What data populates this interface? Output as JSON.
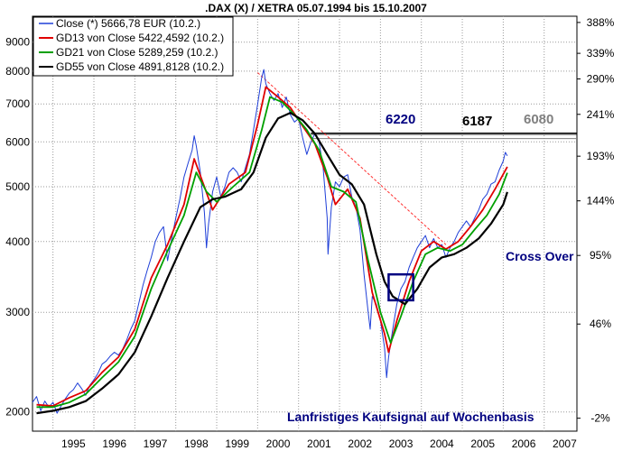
{
  "chart_data": {
    "type": "line",
    "title": ".DAX (X) / XETRA 05.07.1994 bis 15.10.2007",
    "y_scale": "log",
    "ylim": [
      1850,
      10000
    ],
    "xlim": [
      1994.5,
      2007.8
    ],
    "x_tick_labels": [
      "1995",
      "1996",
      "1997",
      "1998",
      "1999",
      "2000",
      "2001",
      "2002",
      "2003",
      "2004",
      "2005",
      "2006",
      "2007"
    ],
    "y_left_ticks": [
      2000,
      3000,
      4000,
      5000,
      6000,
      7000,
      8000,
      9000
    ],
    "y_left_tick_labels": [
      "2000",
      "3000",
      "4000",
      "5000",
      "6000",
      "7000",
      "8000",
      "9000"
    ],
    "y_right_ticks": [
      1950,
      2860,
      3780,
      4720,
      5660,
      6710,
      7750,
      8600,
      9750
    ],
    "y_right_tick_labels": [
      "-2%",
      "46%",
      "95%",
      "144%",
      "193%",
      "241%",
      "290%",
      "339%",
      "388%"
    ],
    "grid": true,
    "legend_position": "top-left",
    "colors": {
      "close": "#1f3fd8",
      "gd13": "#e00000",
      "gd21": "#00a000",
      "gd55": "#000000",
      "trend": "#ff3030",
      "cross_box": "#000080",
      "annotation_blue": "#000080",
      "annotation_grey": "#808080"
    },
    "series": [
      {
        "name": "Close (*) 5666,78 EUR (10.2.)",
        "color": "#1f3fd8",
        "points": [
          [
            1994.5,
            2080
          ],
          [
            1994.6,
            2130
          ],
          [
            1994.7,
            2010
          ],
          [
            1994.8,
            2090
          ],
          [
            1994.9,
            2040
          ],
          [
            1995.0,
            2080
          ],
          [
            1995.1,
            1990
          ],
          [
            1995.2,
            2050
          ],
          [
            1995.3,
            2110
          ],
          [
            1995.4,
            2160
          ],
          [
            1995.5,
            2190
          ],
          [
            1995.6,
            2250
          ],
          [
            1995.7,
            2200
          ],
          [
            1995.8,
            2140
          ],
          [
            1995.9,
            2230
          ],
          [
            1996.0,
            2280
          ],
          [
            1996.1,
            2340
          ],
          [
            1996.2,
            2430
          ],
          [
            1996.3,
            2460
          ],
          [
            1996.4,
            2510
          ],
          [
            1996.5,
            2550
          ],
          [
            1996.6,
            2520
          ],
          [
            1996.7,
            2580
          ],
          [
            1996.8,
            2680
          ],
          [
            1996.9,
            2800
          ],
          [
            1997.0,
            2900
          ],
          [
            1997.1,
            3120
          ],
          [
            1997.2,
            3350
          ],
          [
            1997.3,
            3550
          ],
          [
            1997.4,
            3750
          ],
          [
            1997.5,
            4000
          ],
          [
            1997.6,
            4150
          ],
          [
            1997.7,
            4250
          ],
          [
            1997.8,
            3700
          ],
          [
            1997.9,
            4050
          ],
          [
            1998.0,
            4400
          ],
          [
            1998.1,
            4750
          ],
          [
            1998.2,
            5200
          ],
          [
            1998.3,
            5500
          ],
          [
            1998.4,
            5800
          ],
          [
            1998.45,
            6150
          ],
          [
            1998.5,
            5900
          ],
          [
            1998.6,
            5300
          ],
          [
            1998.7,
            4500
          ],
          [
            1998.75,
            3900
          ],
          [
            1998.8,
            4300
          ],
          [
            1998.9,
            4900
          ],
          [
            1999.0,
            5200
          ],
          [
            1999.1,
            4800
          ],
          [
            1999.2,
            5000
          ],
          [
            1999.3,
            5300
          ],
          [
            1999.4,
            5400
          ],
          [
            1999.5,
            5300
          ],
          [
            1999.6,
            5100
          ],
          [
            1999.7,
            5400
          ],
          [
            1999.8,
            5700
          ],
          [
            1999.9,
            6300
          ],
          [
            2000.0,
            7000
          ],
          [
            2000.1,
            7800
          ],
          [
            2000.15,
            8050
          ],
          [
            2000.2,
            7600
          ],
          [
            2000.3,
            7300
          ],
          [
            2000.4,
            7100
          ],
          [
            2000.5,
            7300
          ],
          [
            2000.6,
            6900
          ],
          [
            2000.7,
            7200
          ],
          [
            2000.8,
            6700
          ],
          [
            2000.9,
            6500
          ],
          [
            2001.0,
            6600
          ],
          [
            2001.1,
            6100
          ],
          [
            2001.2,
            5700
          ],
          [
            2001.3,
            6000
          ],
          [
            2001.4,
            6200
          ],
          [
            2001.5,
            6000
          ],
          [
            2001.6,
            5400
          ],
          [
            2001.7,
            4400
          ],
          [
            2001.72,
            3800
          ],
          [
            2001.8,
            4600
          ],
          [
            2001.9,
            5100
          ],
          [
            2002.0,
            5000
          ],
          [
            2002.1,
            5200
          ],
          [
            2002.2,
            5250
          ],
          [
            2002.3,
            4800
          ],
          [
            2002.4,
            4600
          ],
          [
            2002.5,
            4200
          ],
          [
            2002.6,
            3500
          ],
          [
            2002.7,
            3000
          ],
          [
            2002.75,
            2800
          ],
          [
            2002.8,
            3200
          ],
          [
            2002.9,
            3100
          ],
          [
            2003.0,
            2900
          ],
          [
            2003.1,
            2600
          ],
          [
            2003.15,
            2300
          ],
          [
            2003.2,
            2500
          ],
          [
            2003.3,
            2800
          ],
          [
            2003.4,
            3100
          ],
          [
            2003.5,
            3300
          ],
          [
            2003.6,
            3400
          ],
          [
            2003.7,
            3600
          ],
          [
            2003.8,
            3750
          ],
          [
            2003.9,
            3900
          ],
          [
            2004.0,
            4000
          ],
          [
            2004.1,
            4100
          ],
          [
            2004.2,
            3900
          ],
          [
            2004.3,
            4050
          ],
          [
            2004.4,
            3900
          ],
          [
            2004.5,
            3950
          ],
          [
            2004.6,
            3750
          ],
          [
            2004.7,
            3900
          ],
          [
            2004.8,
            4000
          ],
          [
            2004.9,
            4150
          ],
          [
            2005.0,
            4250
          ],
          [
            2005.1,
            4350
          ],
          [
            2005.2,
            4250
          ],
          [
            2005.3,
            4400
          ],
          [
            2005.4,
            4550
          ],
          [
            2005.5,
            4750
          ],
          [
            2005.6,
            4850
          ],
          [
            2005.7,
            5050
          ],
          [
            2005.8,
            5100
          ],
          [
            2005.9,
            5350
          ],
          [
            2006.0,
            5550
          ],
          [
            2006.05,
            5750
          ],
          [
            2006.1,
            5667
          ]
        ]
      },
      {
        "name": "GD13 von Close 5422,4592 (10.2.)",
        "color": "#e00000",
        "points": [
          [
            1994.6,
            2060
          ],
          [
            1995.0,
            2050
          ],
          [
            1995.4,
            2120
          ],
          [
            1995.8,
            2180
          ],
          [
            1996.2,
            2350
          ],
          [
            1996.6,
            2500
          ],
          [
            1997.0,
            2800
          ],
          [
            1997.4,
            3450
          ],
          [
            1997.8,
            3950
          ],
          [
            1998.2,
            4650
          ],
          [
            1998.45,
            5600
          ],
          [
            1998.7,
            5000
          ],
          [
            1998.9,
            4550
          ],
          [
            1999.3,
            5050
          ],
          [
            1999.7,
            5300
          ],
          [
            2000.0,
            6450
          ],
          [
            2000.2,
            7500
          ],
          [
            2000.5,
            7200
          ],
          [
            2000.8,
            6900
          ],
          [
            2001.1,
            6400
          ],
          [
            2001.4,
            5950
          ],
          [
            2001.7,
            5200
          ],
          [
            2001.9,
            4650
          ],
          [
            2002.2,
            4950
          ],
          [
            2002.5,
            4400
          ],
          [
            2002.8,
            3250
          ],
          [
            2003.1,
            2750
          ],
          [
            2003.2,
            2550
          ],
          [
            2003.4,
            2900
          ],
          [
            2003.7,
            3400
          ],
          [
            2004.0,
            3850
          ],
          [
            2004.3,
            4000
          ],
          [
            2004.6,
            3880
          ],
          [
            2004.9,
            4000
          ],
          [
            2005.2,
            4250
          ],
          [
            2005.5,
            4550
          ],
          [
            2005.8,
            4950
          ],
          [
            2006.1,
            5422
          ]
        ]
      },
      {
        "name": "GD21 von Close 5289,259 (10.2.)",
        "color": "#00a000",
        "points": [
          [
            1994.6,
            2040
          ],
          [
            1995.0,
            2040
          ],
          [
            1995.4,
            2080
          ],
          [
            1995.8,
            2150
          ],
          [
            1996.2,
            2300
          ],
          [
            1996.6,
            2450
          ],
          [
            1997.0,
            2720
          ],
          [
            1997.4,
            3300
          ],
          [
            1997.8,
            3850
          ],
          [
            1998.2,
            4450
          ],
          [
            1998.5,
            5300
          ],
          [
            1998.75,
            4900
          ],
          [
            1999.0,
            4700
          ],
          [
            1999.4,
            5000
          ],
          [
            1999.8,
            5300
          ],
          [
            2000.1,
            6300
          ],
          [
            2000.3,
            7200
          ],
          [
            2000.6,
            7050
          ],
          [
            2000.9,
            6700
          ],
          [
            2001.2,
            6300
          ],
          [
            2001.5,
            5800
          ],
          [
            2001.8,
            5000
          ],
          [
            2002.1,
            4900
          ],
          [
            2002.4,
            4700
          ],
          [
            2002.7,
            3700
          ],
          [
            2003.0,
            3000
          ],
          [
            2003.25,
            2650
          ],
          [
            2003.5,
            2950
          ],
          [
            2003.8,
            3400
          ],
          [
            2004.1,
            3800
          ],
          [
            2004.4,
            3900
          ],
          [
            2004.7,
            3850
          ],
          [
            2005.0,
            3950
          ],
          [
            2005.3,
            4200
          ],
          [
            2005.6,
            4450
          ],
          [
            2005.9,
            4850
          ],
          [
            2006.1,
            5289
          ]
        ]
      },
      {
        "name": "GD55 von Close 4891,8128 (10.2.)",
        "color": "#000000",
        "points": [
          [
            1994.6,
            1990
          ],
          [
            1995.0,
            2010
          ],
          [
            1995.4,
            2040
          ],
          [
            1995.8,
            2090
          ],
          [
            1996.2,
            2200
          ],
          [
            1996.6,
            2330
          ],
          [
            1997.0,
            2550
          ],
          [
            1997.4,
            2950
          ],
          [
            1997.8,
            3450
          ],
          [
            1998.2,
            4000
          ],
          [
            1998.6,
            4600
          ],
          [
            1998.9,
            4750
          ],
          [
            1999.2,
            4800
          ],
          [
            1999.6,
            4950
          ],
          [
            1999.9,
            5300
          ],
          [
            2000.2,
            6100
          ],
          [
            2000.5,
            6600
          ],
          [
            2000.8,
            6750
          ],
          [
            2001.1,
            6550
          ],
          [
            2001.4,
            6200
          ],
          [
            2001.7,
            5700
          ],
          [
            2002.0,
            5250
          ],
          [
            2002.3,
            5050
          ],
          [
            2002.6,
            4650
          ],
          [
            2002.9,
            3800
          ],
          [
            2003.1,
            3400
          ],
          [
            2003.3,
            3200
          ],
          [
            2003.6,
            3100
          ],
          [
            2003.9,
            3300
          ],
          [
            2004.2,
            3600
          ],
          [
            2004.5,
            3750
          ],
          [
            2004.8,
            3800
          ],
          [
            2005.1,
            3900
          ],
          [
            2005.4,
            4050
          ],
          [
            2005.7,
            4300
          ],
          [
            2006.0,
            4650
          ],
          [
            2006.1,
            4892
          ]
        ]
      }
    ],
    "annotations": {
      "level_6220": "6220",
      "level_6187": "6187",
      "level_6080": "6080",
      "cross_over": "Cross Over",
      "signal_text": "Lanfristiges Kaufsignal auf Wochenbasis"
    },
    "horizontal_lines": [
      {
        "value": 6220,
        "from_x": 2001.3,
        "color": "#000000"
      },
      {
        "value": 6187,
        "from_x": 2001.3,
        "color": "#000000"
      },
      {
        "value": 6080,
        "from_x": 2001.3,
        "color": "#808080"
      }
    ],
    "trendline": {
      "from": [
        2000.0,
        7950
      ],
      "to": [
        2004.6,
        3950
      ]
    },
    "cross_over_box": {
      "x": [
        2003.2,
        2003.8
      ],
      "y": [
        3150,
        3500
      ]
    }
  }
}
